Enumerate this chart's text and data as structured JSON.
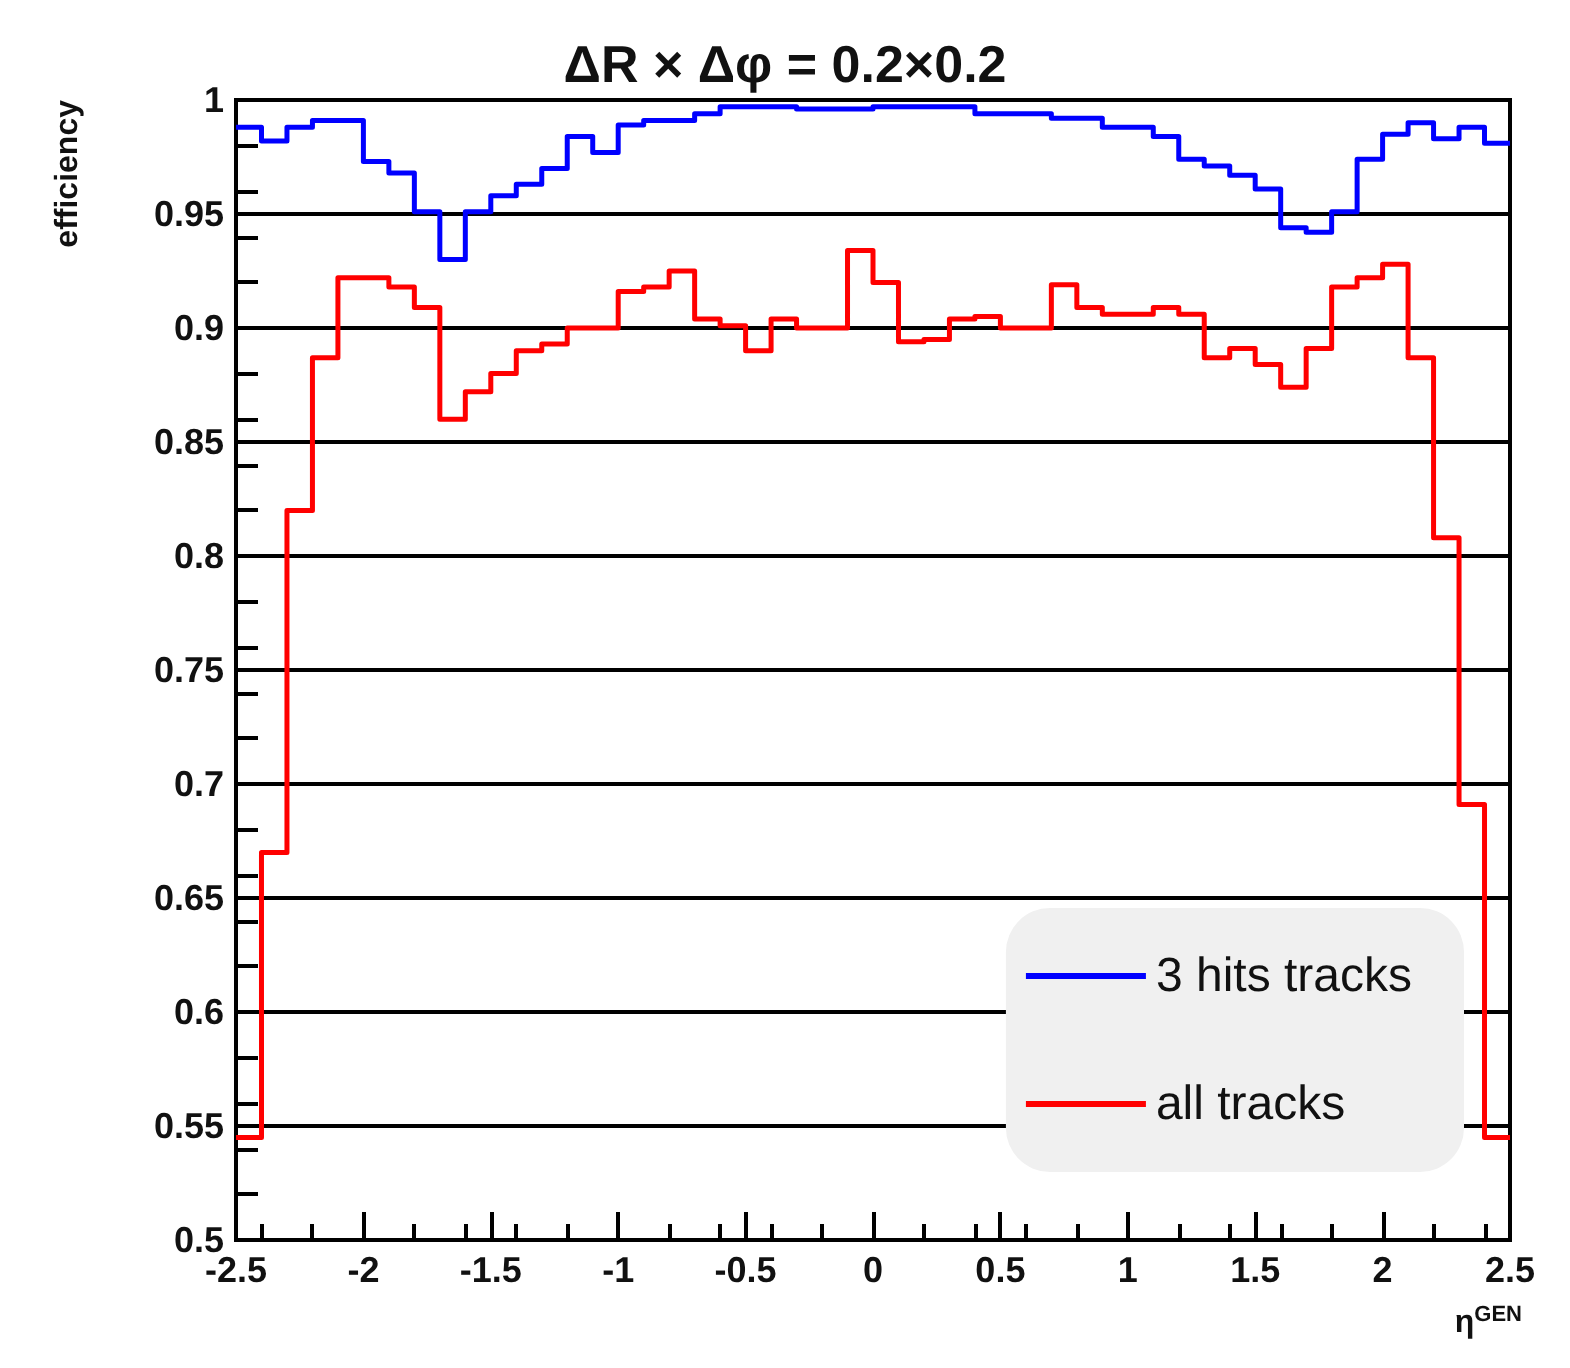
{
  "chart_data": {
    "type": "histogram",
    "title": "ΔR × Δφ = 0.2×0.2",
    "xlabel": "η$^{GEN}$",
    "ylabel": "efficiency",
    "bins": [
      -2.5,
      -2.4,
      -2.3,
      -2.2,
      -2.1,
      -2.0,
      -1.9,
      -1.8,
      -1.7,
      -1.6,
      -1.5,
      -1.4,
      -1.3,
      -1.2,
      -1.1,
      -1.0,
      -0.9,
      -0.8,
      -0.7,
      -0.6,
      -0.5,
      -0.4,
      -0.3,
      -0.2,
      -0.1,
      0.0,
      0.1,
      0.2,
      0.3,
      0.4,
      0.5,
      0.6,
      0.7,
      0.8,
      0.9,
      1.0,
      1.1,
      1.2,
      1.3,
      1.4,
      1.5,
      1.6,
      1.7,
      1.8,
      1.9,
      2.0,
      2.1,
      2.2,
      2.3,
      2.4,
      2.5
    ],
    "series": [
      {
        "name": "3 hits tracks",
        "color": "#0000ff",
        "values": [
          0.988,
          0.982,
          0.988,
          0.991,
          0.991,
          0.973,
          0.968,
          0.951,
          0.93,
          0.951,
          0.958,
          0.963,
          0.97,
          0.984,
          0.977,
          0.989,
          0.991,
          0.991,
          0.994,
          0.997,
          0.997,
          0.997,
          0.996,
          0.996,
          0.996,
          0.997,
          0.997,
          0.997,
          0.997,
          0.994,
          0.994,
          0.994,
          0.992,
          0.992,
          0.988,
          0.988,
          0.984,
          0.974,
          0.971,
          0.967,
          0.961,
          0.944,
          0.942,
          0.951,
          0.974,
          0.985,
          0.99,
          0.983,
          0.988,
          0.981
        ]
      },
      {
        "name": "all tracks",
        "color": "#ff0000",
        "values": [
          0.545,
          0.67,
          0.82,
          0.887,
          0.922,
          0.922,
          0.918,
          0.909,
          0.86,
          0.872,
          0.88,
          0.89,
          0.893,
          0.9,
          0.9,
          0.916,
          0.918,
          0.925,
          0.904,
          0.901,
          0.89,
          0.904,
          0.9,
          0.9,
          0.934,
          0.92,
          0.894,
          0.895,
          0.904,
          0.905,
          0.9,
          0.9,
          0.919,
          0.909,
          0.906,
          0.906,
          0.909,
          0.906,
          0.887,
          0.891,
          0.884,
          0.874,
          0.891,
          0.918,
          0.922,
          0.928,
          0.887,
          0.808,
          0.691,
          0.545
        ]
      }
    ],
    "xlim": [
      -2.5,
      2.5
    ],
    "xticks": [
      -2.5,
      -2,
      -1.5,
      -1,
      -0.5,
      0,
      0.5,
      1,
      1.5,
      2,
      2.5
    ],
    "ylim": [
      0.5,
      1
    ],
    "yticks": [
      0.5,
      0.55,
      0.6,
      0.65,
      0.7,
      0.75,
      0.8,
      0.85,
      0.9,
      0.95,
      1
    ],
    "grid": "y",
    "legend": "bottom right",
    "marker": "none"
  }
}
